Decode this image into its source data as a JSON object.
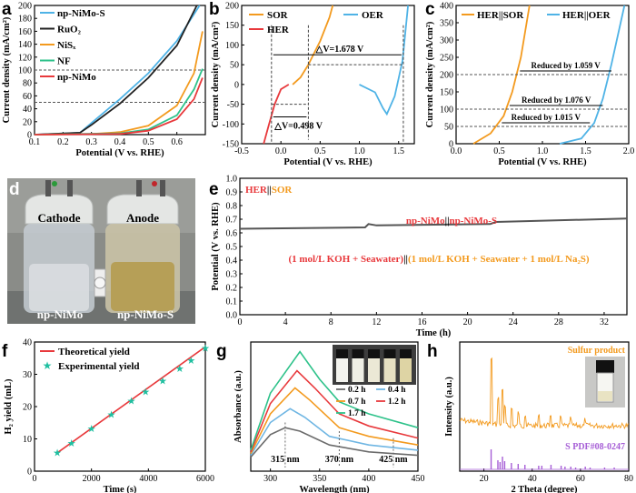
{
  "panel_labels": [
    "a",
    "b",
    "c",
    "d",
    "e",
    "f",
    "g",
    "h"
  ],
  "chart_data": [
    {
      "panel": "a",
      "type": "line",
      "xlabel": "Potential (V vs. RHE)",
      "ylabel": "Current density (mA/cm²)",
      "xlim": [
        0.1,
        0.7
      ],
      "ylim": [
        0,
        200
      ],
      "xticks": [
        "0.1",
        "0.2",
        "0.3",
        "0.4",
        "0.5",
        "0.6"
      ],
      "yticks": [
        "0",
        "20",
        "40",
        "60",
        "80",
        "100",
        "120",
        "140",
        "160",
        "180",
        "200"
      ],
      "series": [
        {
          "name": "np-NiMo-S",
          "color": "#4fb3e6",
          "points": [
            [
              0.1,
              0
            ],
            [
              0.26,
              3
            ],
            [
              0.3,
              18
            ],
            [
              0.4,
              55
            ],
            [
              0.5,
              95
            ],
            [
              0.6,
              145
            ],
            [
              0.68,
              200
            ]
          ]
        },
        {
          "name": "RuO₂",
          "color": "#222222",
          "points": [
            [
              0.1,
              0
            ],
            [
              0.26,
              3
            ],
            [
              0.3,
              15
            ],
            [
              0.4,
              48
            ],
            [
              0.5,
              88
            ],
            [
              0.6,
              138
            ],
            [
              0.67,
              200
            ]
          ]
        },
        {
          "name": "NiSₓ",
          "color": "#f39a1e",
          "points": [
            [
              0.1,
              0
            ],
            [
              0.3,
              1
            ],
            [
              0.4,
              4
            ],
            [
              0.5,
              14
            ],
            [
              0.6,
              45
            ],
            [
              0.66,
              95
            ],
            [
              0.69,
              160
            ]
          ]
        },
        {
          "name": "NF",
          "color": "#2ec28a",
          "points": [
            [
              0.1,
              0
            ],
            [
              0.4,
              2
            ],
            [
              0.5,
              8
            ],
            [
              0.6,
              30
            ],
            [
              0.66,
              70
            ],
            [
              0.69,
              102
            ]
          ]
        },
        {
          "name": "np-NiMo",
          "color": "#e8393c",
          "points": [
            [
              0.1,
              0
            ],
            [
              0.4,
              1
            ],
            [
              0.5,
              6
            ],
            [
              0.6,
              24
            ],
            [
              0.66,
              55
            ],
            [
              0.69,
              88
            ]
          ]
        }
      ],
      "ref_lines": [
        100,
        50
      ]
    },
    {
      "panel": "b",
      "type": "line",
      "xlabel": "Potential (V vs. RHE)",
      "ylabel": "Current density (mA/cm²)",
      "xlim": [
        -0.5,
        1.7
      ],
      "ylim": [
        -150,
        200
      ],
      "xticks": [
        "-0.5",
        "0.0",
        "0.5",
        "1.0",
        "1.5"
      ],
      "yticks": [
        "-150",
        "-100",
        "-50",
        "0",
        "50",
        "100",
        "150",
        "200"
      ],
      "series": [
        {
          "name": "SOR",
          "color": "#f39a1e",
          "points": [
            [
              0.15,
              0
            ],
            [
              0.25,
              18
            ],
            [
              0.35,
              50
            ],
            [
              0.5,
              110
            ],
            [
              0.62,
              170
            ],
            [
              0.66,
              200
            ]
          ]
        },
        {
          "name": "HER",
          "color": "#e8393c",
          "points": [
            [
              -0.22,
              -150
            ],
            [
              -0.15,
              -100
            ],
            [
              -0.08,
              -50
            ],
            [
              0.0,
              -12
            ],
            [
              0.1,
              0
            ]
          ]
        },
        {
          "name": "OER",
          "color": "#4fb3e6",
          "points": [
            [
              1.0,
              0
            ],
            [
              1.2,
              -20
            ],
            [
              1.3,
              -60
            ],
            [
              1.35,
              -75
            ],
            [
              1.45,
              -30
            ],
            [
              1.55,
              60
            ],
            [
              1.62,
              200
            ]
          ]
        }
      ],
      "annotations": [
        "△V=1.678 V",
        "△V=0.498 V"
      ]
    },
    {
      "panel": "c",
      "type": "line",
      "xlabel": "Potential (V vs. RHE)",
      "ylabel": "Current density (mA/cm²)",
      "xlim": [
        0.0,
        2.0
      ],
      "ylim": [
        0,
        400
      ],
      "xticks": [
        "0.0",
        "0.5",
        "1.0",
        "1.5",
        "2.0"
      ],
      "yticks": [
        "0",
        "50",
        "100",
        "150",
        "200",
        "250",
        "300",
        "350",
        "400"
      ],
      "series": [
        {
          "name": "HER||SOR",
          "color": "#f39a1e",
          "points": [
            [
              0.2,
              0
            ],
            [
              0.4,
              30
            ],
            [
              0.55,
              80
            ],
            [
              0.65,
              150
            ],
            [
              0.75,
              250
            ],
            [
              0.85,
              400
            ]
          ]
        },
        {
          "name": "HER||OER",
          "color": "#4fb3e6",
          "points": [
            [
              1.2,
              0
            ],
            [
              1.45,
              15
            ],
            [
              1.6,
              60
            ],
            [
              1.7,
              130
            ],
            [
              1.8,
              230
            ],
            [
              1.95,
              400
            ]
          ]
        }
      ],
      "annotations": [
        "Reduced by 1.059 V",
        "Reduced by 1.076 V",
        "Reduced by 1.015 V"
      ]
    },
    {
      "panel": "e",
      "type": "line",
      "xlabel": "Time (h)",
      "ylabel": "Potential (V vs. RHE)",
      "xlim": [
        0,
        34
      ],
      "ylim": [
        0,
        1.0
      ],
      "xticks": [
        "0",
        "4",
        "8",
        "12",
        "16",
        "20",
        "24",
        "28",
        "32"
      ],
      "yticks": [
        "0.0",
        "0.1",
        "0.2",
        "0.3",
        "0.4",
        "0.5",
        "0.6",
        "0.7",
        "0.8",
        "0.9",
        "1.0"
      ],
      "series": [
        {
          "name": "stability",
          "color": "#555555",
          "points": [
            [
              0,
              0.63
            ],
            [
              11,
              0.64
            ],
            [
              11.3,
              0.665
            ],
            [
              12,
              0.655
            ],
            [
              22,
              0.665
            ],
            [
              22.5,
              0.68
            ],
            [
              34,
              0.705
            ]
          ]
        }
      ],
      "title_parts": {
        "her": "HER",
        "sep": "||",
        "sor": "SOR"
      },
      "device_parts": {
        "cath": "np-NiMo",
        "sep": "||",
        "anod": "np-NiMo-S"
      },
      "electrolyte_parts": {
        "left": "(1 mol/L KOH + Seawater)",
        "sep": "||",
        "right": "(1 mol/L KOH + Seawater + 1 mol/L Na₂S)"
      }
    },
    {
      "panel": "f",
      "type": "line",
      "xlabel": "Time (s)",
      "ylabel": "H₂ yield (mL)",
      "xlim": [
        0,
        6000
      ],
      "ylim": [
        0,
        40
      ],
      "xticks": [
        "0",
        "2000",
        "4000",
        "6000"
      ],
      "yticks": [
        "0",
        "10",
        "20",
        "30",
        "40"
      ],
      "series": [
        {
          "name": "Theoretical yield",
          "color": "#e8393c",
          "points": [
            [
              800,
              5.7
            ],
            [
              6000,
              38.5
            ]
          ]
        },
        {
          "name": "Experimental yield",
          "color": "#1fbfa0",
          "points": [
            [
              800,
              5.8
            ],
            [
              1300,
              8.7
            ],
            [
              2000,
              13.2
            ],
            [
              2700,
              17.6
            ],
            [
              3400,
              21.8
            ],
            [
              3900,
              24.6
            ],
            [
              4500,
              28.0
            ],
            [
              5100,
              31.8
            ],
            [
              5500,
              34.4
            ],
            [
              6000,
              38.2
            ]
          ]
        }
      ]
    },
    {
      "panel": "g",
      "type": "line",
      "xlabel": "Wavelength (nm)",
      "ylabel": "Absorbance (a.u.)",
      "xlim": [
        280,
        450
      ],
      "xticks": [
        "300",
        "350",
        "400",
        "450"
      ],
      "series": [
        {
          "name": "0.2 h",
          "color": "#6b6b6b",
          "points": [
            [
              270,
              0.05
            ],
            [
              300,
              0.18
            ],
            [
              315,
              0.22
            ],
            [
              330,
              0.2
            ],
            [
              360,
              0.12
            ],
            [
              400,
              0.08
            ],
            [
              450,
              0.06
            ]
          ]
        },
        {
          "name": "0.4 h",
          "color": "#6fb6e3",
          "points": [
            [
              270,
              0.06
            ],
            [
              300,
              0.25
            ],
            [
              320,
              0.33
            ],
            [
              335,
              0.28
            ],
            [
              360,
              0.17
            ],
            [
              400,
              0.12
            ],
            [
              450,
              0.09
            ]
          ]
        },
        {
          "name": "0.7 h",
          "color": "#f39a1e",
          "points": [
            [
              270,
              0.07
            ],
            [
              300,
              0.3
            ],
            [
              325,
              0.45
            ],
            [
              340,
              0.38
            ],
            [
              370,
              0.22
            ],
            [
              400,
              0.17
            ],
            [
              450,
              0.12
            ]
          ]
        },
        {
          "name": "1.2 h",
          "color": "#e8393c",
          "points": [
            [
              270,
              0.08
            ],
            [
              300,
              0.36
            ],
            [
              327,
              0.55
            ],
            [
              345,
              0.45
            ],
            [
              370,
              0.3
            ],
            [
              400,
              0.23
            ],
            [
              450,
              0.16
            ]
          ]
        },
        {
          "name": "1.7 h",
          "color": "#2ec28a",
          "points": [
            [
              270,
              0.09
            ],
            [
              300,
              0.42
            ],
            [
              330,
              0.66
            ],
            [
              350,
              0.5
            ],
            [
              370,
              0.37
            ],
            [
              400,
              0.3
            ],
            [
              450,
              0.22
            ]
          ]
        }
      ],
      "peak_labels": [
        "315 nm",
        "370 nm",
        "425 nm"
      ]
    },
    {
      "panel": "h",
      "type": "line",
      "xlabel": "2 Theta (degree)",
      "ylabel": "Intensity (a.u.)",
      "xlim": [
        10,
        80
      ],
      "xticks": [
        "20",
        "40",
        "60",
        "80"
      ],
      "series": [
        {
          "name": "Sulfur product",
          "color": "#f39a1e"
        },
        {
          "name": "S PDF#08-0247",
          "color": "#a65ed6"
        }
      ]
    }
  ],
  "panel_d": {
    "cathode": "Cathode",
    "anode": "Anode",
    "cath_sample": "np-NiMo",
    "anod_sample": "np-NiMo-S"
  }
}
